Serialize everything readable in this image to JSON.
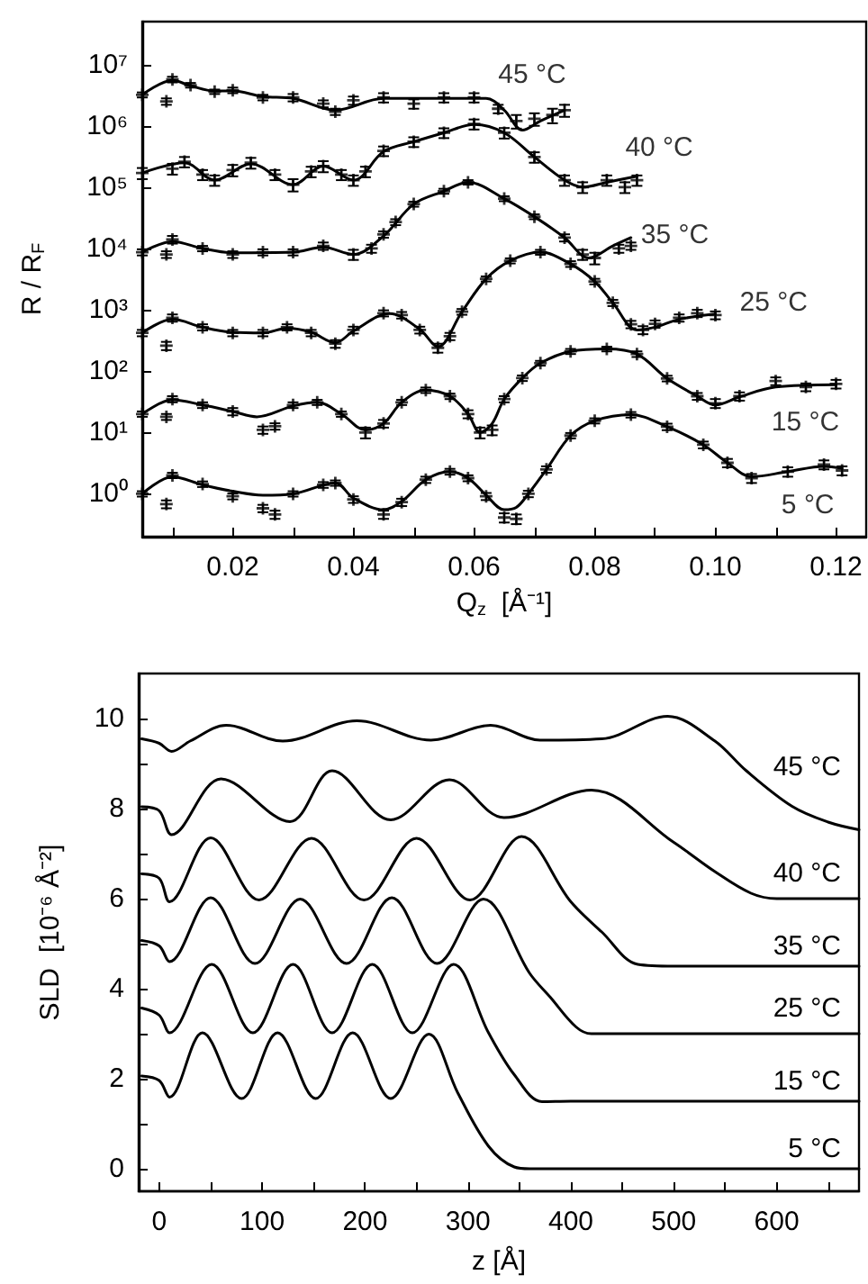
{
  "chart_data": [
    {
      "type": "scatter",
      "xlabel": "Q$_{z}$  [Å⁻¹]",
      "ylabel": "R / R$_{F}$",
      "log": "y",
      "marker": "cross",
      "xlim": [
        0.005,
        0.125
      ],
      "ylim": [
        0.2,
        50000000.0
      ],
      "xticks": [
        {
          "value": 0.01,
          "label": null
        },
        0.02,
        {
          "value": 0.03,
          "label": null
        },
        0.04,
        {
          "value": 0.05,
          "label": null
        },
        0.06,
        {
          "value": 0.07,
          "label": null
        },
        0.08,
        {
          "value": 0.09,
          "label": null
        },
        {
          "value": 0.1,
          "label": "0.10"
        },
        {
          "value": 0.11,
          "label": null
        },
        0.12
      ],
      "yticks": [
        {
          "value": 1,
          "label": "10⁰"
        },
        {
          "value": 10,
          "label": "10¹"
        },
        {
          "value": 100,
          "label": "10²"
        },
        {
          "value": 1000,
          "label": "10³"
        },
        {
          "value": 10000,
          "label": "10⁴"
        },
        {
          "value": 100000,
          "label": "10⁵"
        },
        {
          "value": 1000000,
          "label": "10⁶"
        },
        {
          "value": 10000000,
          "label": "10⁷"
        }
      ],
      "series": [
        {
          "name": "45 °C",
          "color": "#000000",
          "x": [
            0.005,
            0.009,
            0.01,
            0.013,
            0.017,
            0.02,
            0.025,
            0.03,
            0.035,
            0.037,
            0.04,
            0.045,
            0.05,
            0.055,
            0.06,
            0.064,
            0.067,
            0.07,
            0.073,
            0.075
          ],
          "values": [
            3200000.0,
            2500000.0,
            5700000.0,
            4600000.0,
            3600000.0,
            3800000.0,
            2900000.0,
            2900000.0,
            2300000.0,
            1700000.0,
            2600000.0,
            2900000.0,
            2300000.0,
            2900000.0,
            2900000.0,
            1900000.0,
            1200000.0,
            1300000.0,
            1500000.0,
            1800000.0
          ],
          "errors": [
            300000.0,
            300000.0,
            600000.0,
            400000.0,
            300000.0,
            400000.0,
            300000.0,
            400000.0,
            300000.0,
            200000.0,
            400000.0,
            500000.0,
            400000.0,
            500000.0,
            500000.0,
            300000.0,
            300000.0,
            300000.0,
            400000.0,
            400000.0
          ]
        },
        {
          "name": "40 °C",
          "color": "#000000",
          "x": [
            0.005,
            0.01,
            0.012,
            0.015,
            0.017,
            0.02,
            0.023,
            0.027,
            0.03,
            0.033,
            0.035,
            0.038,
            0.04,
            0.042,
            0.045,
            0.05,
            0.055,
            0.06,
            0.065,
            0.07,
            0.075,
            0.078,
            0.082,
            0.085,
            0.087
          ],
          "values": [
            170000.0,
            200000.0,
            260000.0,
            160000.0,
            130000.0,
            190000.0,
            250000.0,
            160000.0,
            110000.0,
            180000.0,
            220000.0,
            160000.0,
            130000.0,
            180000.0,
            390000.0,
            550000.0,
            770000.0,
            1070000.0,
            770000.0,
            310000.0,
            130000.0,
            100000.0,
            130000.0,
            100000.0,
            130000.0
          ],
          "errors": [
            35000.0,
            40000.0,
            50000.0,
            30000.0,
            25000.0,
            40000.0,
            50000.0,
            30000.0,
            25000.0,
            35000.0,
            45000.0,
            30000.0,
            25000.0,
            35000.0,
            70000.0,
            100000.0,
            140000.0,
            200000.0,
            150000.0,
            60000.0,
            25000.0,
            20000.0,
            25000.0,
            20000.0,
            25000.0
          ]
        },
        {
          "name": "35 °C",
          "color": "#000000",
          "x": [
            0.005,
            0.009,
            0.01,
            0.015,
            0.02,
            0.025,
            0.03,
            0.035,
            0.04,
            0.043,
            0.045,
            0.047,
            0.05,
            0.055,
            0.059,
            0.065,
            0.07,
            0.075,
            0.078,
            0.08,
            0.084,
            0.086
          ],
          "values": [
            8700,
            8000,
            14000,
            10000,
            8000,
            8700,
            8700,
            11000,
            8000,
            10000,
            17000,
            27000,
            53000,
            86000,
            120000,
            65000,
            33000,
            15000,
            8000,
            7000,
            10000,
            11000
          ],
          "errors": [
            1000,
            1000,
            2000,
            1000,
            1000,
            1000,
            1000,
            1500,
            1500,
            1500,
            2000,
            3000,
            5000,
            8000,
            10000,
            6000,
            3000,
            2000,
            1500,
            1500,
            1500,
            1500
          ]
        },
        {
          "name": "25 °C",
          "color": "#000000",
          "x": [
            0.005,
            0.009,
            0.01,
            0.015,
            0.02,
            0.025,
            0.029,
            0.033,
            0.037,
            0.04,
            0.045,
            0.048,
            0.051,
            0.054,
            0.056,
            0.058,
            0.062,
            0.066,
            0.071,
            0.076,
            0.08,
            0.083,
            0.086,
            0.088,
            0.09,
            0.094,
            0.097,
            0.1
          ],
          "values": [
            420,
            260,
            740,
            520,
            420,
            420,
            520,
            420,
            280,
            470,
            880,
            820,
            470,
            240,
            370,
            930,
            3200,
            6300,
            8700,
            5600,
            2900,
            1300,
            580,
            470,
            590,
            740,
            880,
            820
          ],
          "errors": [
            50,
            40,
            100,
            60,
            50,
            50,
            60,
            50,
            40,
            60,
            100,
            100,
            60,
            40,
            50,
            100,
            300,
            600,
            800,
            600,
            300,
            150,
            80,
            70,
            80,
            100,
            120,
            120
          ]
        },
        {
          "name": "15 °C",
          "color": "#000000",
          "x": [
            0.005,
            0.009,
            0.01,
            0.015,
            0.02,
            0.025,
            0.027,
            0.03,
            0.034,
            0.038,
            0.042,
            0.045,
            0.048,
            0.052,
            0.056,
            0.059,
            0.061,
            0.063,
            0.065,
            0.068,
            0.071,
            0.076,
            0.082,
            0.087,
            0.092,
            0.097,
            0.1,
            0.104,
            0.11,
            0.115,
            0.12
          ],
          "values": [
            20,
            18,
            35,
            28,
            22,
            11,
            12.6,
            28,
            31,
            20,
            10,
            14,
            31,
            49,
            39,
            20,
            10,
            11,
            35,
            77,
            135,
            210,
            230,
            190,
            76,
            39,
            30,
            39,
            69,
            55,
            62
          ],
          "errors": [
            2,
            2,
            4,
            3,
            3,
            1.5,
            1.5,
            3,
            3,
            2,
            2,
            2,
            3,
            5,
            4,
            3,
            2,
            2,
            4,
            8,
            12,
            20,
            20,
            20,
            8,
            5,
            5,
            6,
            10,
            8,
            10
          ]
        },
        {
          "name": "5 °C",
          "color": "#000000",
          "x": [
            0.005,
            0.009,
            0.01,
            0.015,
            0.02,
            0.025,
            0.027,
            0.03,
            0.035,
            0.037,
            0.04,
            0.045,
            0.048,
            0.052,
            0.056,
            0.059,
            0.062,
            0.065,
            0.067,
            0.069,
            0.072,
            0.076,
            0.08,
            0.086,
            0.092,
            0.098,
            0.102,
            0.106,
            0.112,
            0.118,
            0.121
          ],
          "values": [
            1.0,
            0.68,
            2.0,
            1.44,
            0.91,
            0.58,
            0.46,
            1.0,
            1.4,
            1.5,
            0.81,
            0.46,
            0.73,
            1.7,
            2.3,
            1.8,
            0.91,
            0.41,
            0.39,
            1.0,
            2.5,
            8.9,
            15.5,
            19.5,
            12.4,
            6.3,
            3.2,
            1.8,
            2.3,
            3.0,
            2.4
          ],
          "errors": [
            0.1,
            0.1,
            0.2,
            0.15,
            0.1,
            0.08,
            0.07,
            0.1,
            0.15,
            0.15,
            0.1,
            0.07,
            0.1,
            0.2,
            0.25,
            0.2,
            0.12,
            0.07,
            0.07,
            0.12,
            0.3,
            0.9,
            1.5,
            2,
            1.5,
            0.8,
            0.5,
            0.3,
            0.4,
            0.5,
            0.4
          ]
        },
        {
          "type": "line",
          "marker": "none",
          "color": "#000000",
          "x": [
            0.005,
            0.01,
            0.013,
            0.017,
            0.02,
            0.025,
            0.03,
            0.037,
            0.045,
            0.055,
            0.062,
            0.065,
            0.068,
            0.071,
            0.075
          ],
          "values": [
            3200000.0,
            5500000.0,
            4500000.0,
            3700000.0,
            3700000.0,
            3000000.0,
            2800000.0,
            1800000.0,
            2800000.0,
            2800000.0,
            2800000.0,
            1800000.0,
            850000.0,
            1200000.0,
            1800000.0
          ]
        },
        {
          "type": "line",
          "marker": "none",
          "color": "#000000",
          "x": [
            0.005,
            0.012,
            0.017,
            0.023,
            0.03,
            0.035,
            0.04,
            0.045,
            0.05,
            0.055,
            0.06,
            0.065,
            0.07,
            0.075,
            0.078,
            0.082,
            0.087
          ],
          "values": [
            170000.0,
            250000.0,
            130000.0,
            240000.0,
            110000.0,
            220000.0,
            130000.0,
            380000.0,
            550000.0,
            770000.0,
            1050000.0,
            770000.0,
            310000.0,
            130000.0,
            100000.0,
            120000.0,
            150000.0
          ]
        },
        {
          "type": "line",
          "marker": "none",
          "color": "#000000",
          "x": [
            0.005,
            0.01,
            0.015,
            0.02,
            0.03,
            0.035,
            0.04,
            0.045,
            0.05,
            0.055,
            0.059,
            0.065,
            0.07,
            0.075,
            0.079,
            0.083,
            0.086
          ],
          "values": [
            8700,
            13000,
            10000,
            8500,
            8700,
            10500,
            8000,
            16000,
            53000,
            86000,
            120000,
            65000,
            33000,
            15000,
            7000,
            11000,
            15000
          ]
        },
        {
          "type": "line",
          "marker": "none",
          "color": "#000000",
          "x": [
            0.005,
            0.01,
            0.015,
            0.02,
            0.025,
            0.029,
            0.033,
            0.037,
            0.04,
            0.046,
            0.051,
            0.054,
            0.058,
            0.062,
            0.066,
            0.071,
            0.076,
            0.08,
            0.083,
            0.087,
            0.09,
            0.094,
            0.1
          ],
          "values": [
            420,
            700,
            520,
            430,
            420,
            500,
            430,
            290,
            450,
            870,
            480,
            250,
            930,
            3200,
            6300,
            8700,
            5600,
            2900,
            1300,
            470,
            520,
            700,
            850
          ]
        },
        {
          "type": "line",
          "marker": "none",
          "color": "#000000",
          "x": [
            0.005,
            0.01,
            0.015,
            0.02,
            0.024,
            0.03,
            0.034,
            0.038,
            0.042,
            0.045,
            0.048,
            0.052,
            0.056,
            0.059,
            0.061,
            0.063,
            0.065,
            0.068,
            0.071,
            0.076,
            0.082,
            0.087,
            0.092,
            0.097,
            0.1,
            0.104,
            0.11,
            0.12
          ],
          "values": [
            20,
            34,
            28,
            22,
            18,
            27,
            31,
            20,
            11,
            14,
            31,
            49,
            39,
            20,
            10,
            14,
            35,
            77,
            135,
            210,
            230,
            190,
            76,
            39,
            28,
            38,
            55,
            60
          ]
        },
        {
          "type": "line",
          "marker": "none",
          "color": "#000000",
          "x": [
            0.005,
            0.01,
            0.015,
            0.02,
            0.025,
            0.03,
            0.037,
            0.04,
            0.045,
            0.048,
            0.052,
            0.056,
            0.059,
            0.062,
            0.065,
            0.067,
            0.069,
            0.072,
            0.076,
            0.08,
            0.086,
            0.092,
            0.098,
            0.102,
            0.106,
            0.112,
            0.118,
            0.121
          ],
          "values": [
            1.0,
            1.9,
            1.4,
            1.1,
            0.95,
            1.0,
            1.5,
            0.85,
            0.55,
            0.75,
            1.7,
            2.3,
            1.8,
            0.95,
            0.55,
            0.6,
            1.0,
            2.5,
            8.9,
            15.5,
            19.5,
            12.4,
            6.3,
            3.2,
            1.9,
            2.3,
            2.8,
            2.6
          ]
        }
      ]
    },
    {
      "type": "line",
      "xlabel": "z [Å]",
      "ylabel": "SLD  [10⁻⁶ Å⁻²]",
      "marker": "none",
      "xlim": [
        -20,
        680
      ],
      "ylim": [
        -0.5,
        11
      ],
      "xticks": [
        0,
        {
          "value": 50,
          "label": null
        },
        100,
        {
          "value": 150,
          "label": null
        },
        200,
        {
          "value": 250,
          "label": null
        },
        300,
        {
          "value": 350,
          "label": null
        },
        400,
        {
          "value": 450,
          "label": null
        },
        500,
        {
          "value": 550,
          "label": null
        },
        600,
        {
          "value": 650,
          "label": null
        }
      ],
      "yticks": [
        0,
        {
          "value": 1,
          "label": null
        },
        2,
        {
          "value": 3,
          "label": null
        },
        4,
        {
          "value": 5,
          "label": null
        },
        6,
        {
          "value": 7,
          "label": null
        },
        8,
        {
          "value": 9,
          "label": null
        },
        10
      ],
      "series": [
        {
          "name": "45 °C",
          "color": "#000000",
          "x": [
            -17,
            0,
            12,
            30,
            65,
            120,
            192,
            264,
            322,
            370,
            430,
            494,
            540,
            570,
            615,
            650,
            680
          ],
          "values": [
            9.55,
            9.45,
            9.27,
            9.5,
            9.85,
            9.5,
            9.95,
            9.52,
            9.85,
            9.52,
            9.55,
            10.05,
            9.5,
            8.85,
            8.05,
            7.7,
            7.53
          ]
        },
        {
          "name": "40 °C",
          "color": "#000000",
          "x": [
            -17,
            0,
            12,
            60,
            127,
            168,
            225,
            282,
            335,
            420,
            500,
            540,
            575,
            600,
            680
          ],
          "values": [
            8.04,
            7.95,
            7.42,
            8.66,
            7.71,
            8.84,
            7.75,
            8.64,
            7.8,
            8.41,
            7.25,
            6.6,
            6.12,
            6.0,
            6.0
          ]
        },
        {
          "name": "35 °C",
          "color": "#000000",
          "x": [
            -17,
            0,
            10,
            50,
            97,
            148,
            199,
            250,
            302,
            352,
            400,
            430,
            465,
            500,
            680
          ],
          "values": [
            6.55,
            6.45,
            5.93,
            7.35,
            5.97,
            7.34,
            5.97,
            7.34,
            5.97,
            7.38,
            5.93,
            5.26,
            4.54,
            4.5,
            4.5
          ]
        },
        {
          "name": "25 °C",
          "color": "#000000",
          "x": [
            -17,
            0,
            10,
            50,
            93,
            137,
            182,
            226,
            270,
            315,
            360,
            380,
            405,
            420,
            680
          ],
          "values": [
            5.07,
            4.95,
            4.6,
            6.02,
            4.56,
            5.99,
            4.56,
            6.02,
            4.56,
            5.99,
            4.34,
            3.81,
            3.15,
            3.0,
            3.0
          ]
        },
        {
          "name": "15 °C",
          "color": "#000000",
          "x": [
            -17,
            0,
            10,
            51,
            91,
            130,
            168,
            207,
            246,
            286,
            320,
            345,
            372,
            400,
            680
          ],
          "values": [
            3.57,
            3.41,
            3.02,
            4.54,
            3.02,
            4.54,
            3.02,
            4.54,
            3.02,
            4.54,
            3.02,
            2.09,
            1.49,
            1.5,
            1.5
          ]
        },
        {
          "name": "5 °C",
          "color": "#000000",
          "x": [
            -17,
            0,
            10,
            42,
            80,
            115,
            152,
            188,
            225,
            262,
            290,
            320,
            345,
            360,
            680
          ],
          "values": [
            2.06,
            1.96,
            1.59,
            3.02,
            1.56,
            3.02,
            1.56,
            3.02,
            1.56,
            2.99,
            1.69,
            0.5,
            0.04,
            0.0,
            0.0
          ]
        }
      ]
    }
  ]
}
